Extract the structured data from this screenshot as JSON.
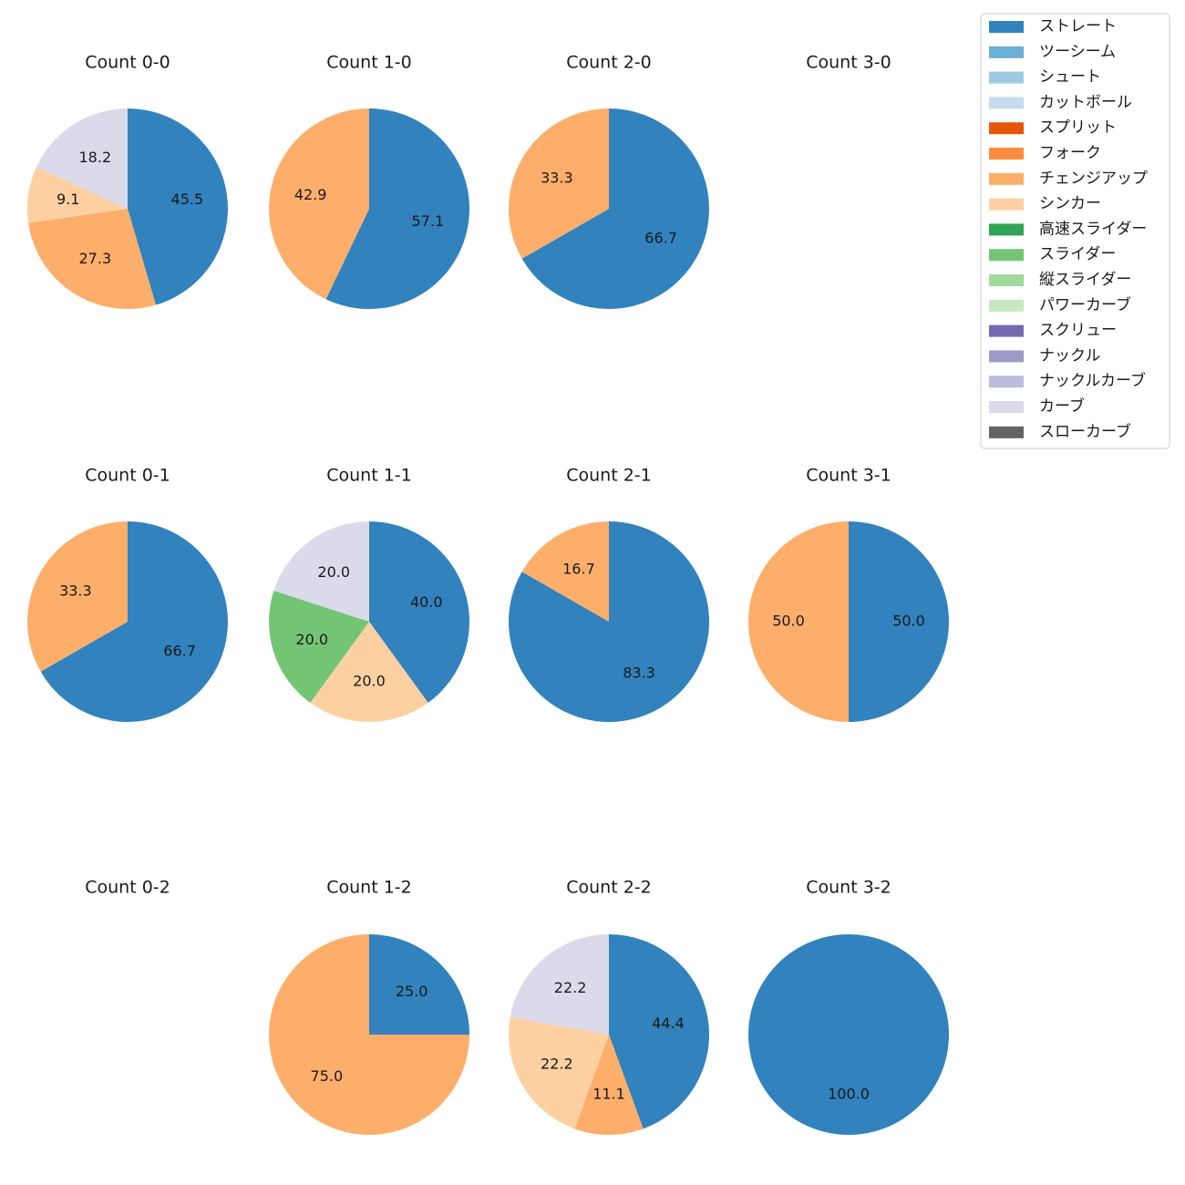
{
  "chart_data": {
    "type": "pie",
    "legend_position": "top-right",
    "legend": [
      {
        "name": "ストレート",
        "color": "#3182bd"
      },
      {
        "name": "ツーシーム",
        "color": "#6baed6"
      },
      {
        "name": "シュート",
        "color": "#9ecae1"
      },
      {
        "name": "カットボール",
        "color": "#c6dbef"
      },
      {
        "name": "スプリット",
        "color": "#e6550d"
      },
      {
        "name": "フォーク",
        "color": "#fd8d3c"
      },
      {
        "name": "チェンジアップ",
        "color": "#fdae6b"
      },
      {
        "name": "シンカー",
        "color": "#fdd0a2"
      },
      {
        "name": "高速スライダー",
        "color": "#31a354"
      },
      {
        "name": "スライダー",
        "color": "#74c476"
      },
      {
        "name": "縦スライダー",
        "color": "#a1d99b"
      },
      {
        "name": "パワーカーブ",
        "color": "#c7e9c0"
      },
      {
        "name": "スクリュー",
        "color": "#756bb1"
      },
      {
        "name": "ナックル",
        "color": "#9e9ac8"
      },
      {
        "name": "ナックルカーブ",
        "color": "#bcbddc"
      },
      {
        "name": "カーブ",
        "color": "#dadaeb"
      },
      {
        "name": "スローカーブ",
        "color": "#636363"
      }
    ],
    "charts": [
      {
        "title": "Count 0-0",
        "slices": [
          {
            "pitch": "ストレート",
            "value": 45.5,
            "label": "45.5"
          },
          {
            "pitch": "チェンジアップ",
            "value": 27.3,
            "label": "27.3"
          },
          {
            "pitch": "シンカー",
            "value": 9.1,
            "label": "9.1"
          },
          {
            "pitch": "カーブ",
            "value": 18.2,
            "label": "18.2"
          }
        ]
      },
      {
        "title": "Count 1-0",
        "slices": [
          {
            "pitch": "ストレート",
            "value": 57.1,
            "label": "57.1"
          },
          {
            "pitch": "チェンジアップ",
            "value": 42.9,
            "label": "42.9"
          }
        ]
      },
      {
        "title": "Count 2-0",
        "slices": [
          {
            "pitch": "ストレート",
            "value": 66.7,
            "label": "66.7"
          },
          {
            "pitch": "チェンジアップ",
            "value": 33.3,
            "label": "33.3"
          }
        ]
      },
      {
        "title": "Count 3-0",
        "slices": []
      },
      {
        "title": "Count 0-1",
        "slices": [
          {
            "pitch": "ストレート",
            "value": 66.7,
            "label": "66.7"
          },
          {
            "pitch": "チェンジアップ",
            "value": 33.3,
            "label": "33.3"
          }
        ]
      },
      {
        "title": "Count 1-1",
        "slices": [
          {
            "pitch": "ストレート",
            "value": 40.0,
            "label": "40.0"
          },
          {
            "pitch": "シンカー",
            "value": 20.0,
            "label": "20.0"
          },
          {
            "pitch": "スライダー",
            "value": 20.0,
            "label": "20.0"
          },
          {
            "pitch": "カーブ",
            "value": 20.0,
            "label": "20.0"
          }
        ]
      },
      {
        "title": "Count 2-1",
        "slices": [
          {
            "pitch": "ストレート",
            "value": 83.3,
            "label": "83.3"
          },
          {
            "pitch": "チェンジアップ",
            "value": 16.7,
            "label": "16.7"
          }
        ]
      },
      {
        "title": "Count 3-1",
        "slices": [
          {
            "pitch": "ストレート",
            "value": 50.0,
            "label": "50.0"
          },
          {
            "pitch": "チェンジアップ",
            "value": 50.0,
            "label": "50.0"
          }
        ]
      },
      {
        "title": "Count 0-2",
        "slices": []
      },
      {
        "title": "Count 1-2",
        "slices": [
          {
            "pitch": "ストレート",
            "value": 25.0,
            "label": "25.0"
          },
          {
            "pitch": "チェンジアップ",
            "value": 75.0,
            "label": "75.0"
          }
        ]
      },
      {
        "title": "Count 2-2",
        "slices": [
          {
            "pitch": "ストレート",
            "value": 44.4,
            "label": "44.4"
          },
          {
            "pitch": "チェンジアップ",
            "value": 11.1,
            "label": "11.1"
          },
          {
            "pitch": "シンカー",
            "value": 22.2,
            "label": "22.2"
          },
          {
            "pitch": "カーブ",
            "value": 22.2,
            "label": "22.2"
          }
        ]
      },
      {
        "title": "Count 3-2",
        "slices": [
          {
            "pitch": "ストレート",
            "value": 100.0,
            "label": "100.0"
          }
        ]
      }
    ]
  }
}
